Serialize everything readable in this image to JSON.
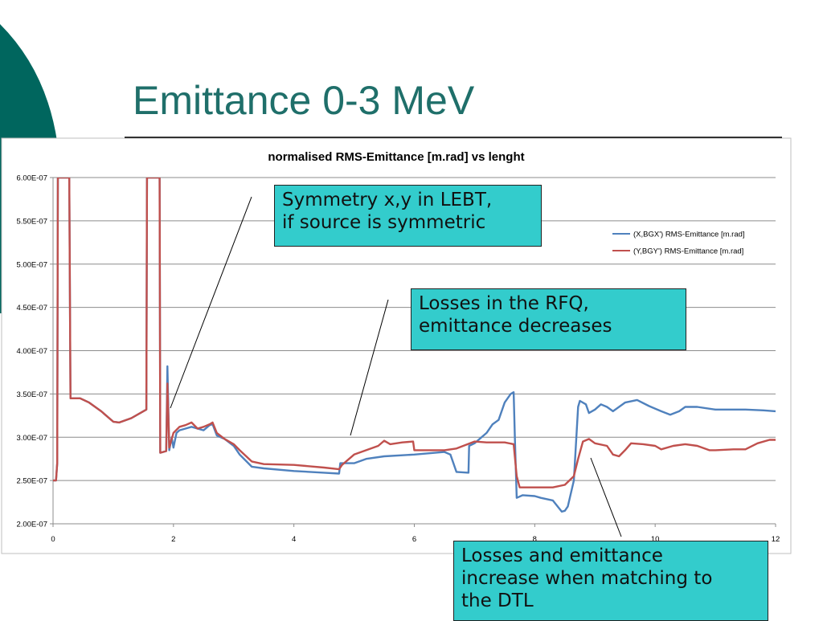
{
  "slide": {
    "title": "Emittance 0-3 MeV",
    "accent_color": "#00665e"
  },
  "callouts": [
    {
      "lines": [
        "Symmetry x,y in LEBT,",
        "if source is symmetric"
      ]
    },
    {
      "lines": [
        "Losses in the RFQ,",
        "emittance decreases"
      ]
    },
    {
      "lines": [
        "Losses and emittance",
        "increase when matching to",
        "the DTL"
      ]
    }
  ],
  "chart_data": {
    "type": "line",
    "title": "normalised  RMS-Emittance [m.rad] vs lenght",
    "xlabel": "",
    "ylabel": "",
    "xlim": [
      0,
      12
    ],
    "ylim": [
      2e-07,
      6e-07
    ],
    "x_ticks": [
      "0",
      "2",
      "4",
      "6",
      "8",
      "10",
      "12"
    ],
    "y_ticks": [
      "2.00E-07",
      "2.50E-07",
      "3.00E-07",
      "3.50E-07",
      "4.00E-07",
      "4.50E-07",
      "5.00E-07",
      "5.50E-07",
      "6.00E-07"
    ],
    "grid": "horizontal",
    "legend_position": "top-right",
    "series": [
      {
        "name": "(X,BGX') RMS-Emittance  [m.rad]",
        "color": "#4f81bd",
        "points": [
          [
            0,
            2.5e-07
          ],
          [
            0.05,
            2.5e-07
          ],
          [
            0.07,
            2.7e-07
          ],
          [
            0.08,
            6e-07
          ],
          [
            0.27,
            6e-07
          ],
          [
            0.29,
            3.45e-07
          ],
          [
            0.45,
            3.45e-07
          ],
          [
            0.6,
            3.4e-07
          ],
          [
            0.8,
            3.3e-07
          ],
          [
            1.0,
            3.18e-07
          ],
          [
            1.1,
            3.17e-07
          ],
          [
            1.3,
            3.22e-07
          ],
          [
            1.55,
            3.32e-07
          ],
          [
            1.56,
            6e-07
          ],
          [
            1.77,
            6e-07
          ],
          [
            1.78,
            2.82e-07
          ],
          [
            1.88,
            2.84e-07
          ],
          [
            1.9,
            3.82e-07
          ],
          [
            1.93,
            2.85e-07
          ],
          [
            1.97,
            3e-07
          ],
          [
            2.0,
            2.88e-07
          ],
          [
            2.05,
            3.05e-07
          ],
          [
            2.1,
            3.08e-07
          ],
          [
            2.2,
            3.1e-07
          ],
          [
            2.3,
            3.12e-07
          ],
          [
            2.4,
            3.1e-07
          ],
          [
            2.5,
            3.08e-07
          ],
          [
            2.6,
            3.14e-07
          ],
          [
            2.65,
            3.15e-07
          ],
          [
            2.72,
            3.02e-07
          ],
          [
            2.85,
            2.98e-07
          ],
          [
            3.0,
            2.9e-07
          ],
          [
            3.1,
            2.8e-07
          ],
          [
            3.3,
            2.66e-07
          ],
          [
            3.5,
            2.64e-07
          ],
          [
            4.0,
            2.61e-07
          ],
          [
            4.5,
            2.59e-07
          ],
          [
            4.75,
            2.58e-07
          ],
          [
            4.77,
            2.7e-07
          ],
          [
            5.0,
            2.7e-07
          ],
          [
            5.2,
            2.75e-07
          ],
          [
            5.5,
            2.78e-07
          ],
          [
            6.0,
            2.8e-07
          ],
          [
            6.5,
            2.83e-07
          ],
          [
            6.6,
            2.8e-07
          ],
          [
            6.7,
            2.6e-07
          ],
          [
            6.9,
            2.59e-07
          ],
          [
            6.91,
            2.9e-07
          ],
          [
            7.0,
            2.93e-07
          ],
          [
            7.2,
            3.05e-07
          ],
          [
            7.3,
            3.15e-07
          ],
          [
            7.4,
            3.2e-07
          ],
          [
            7.5,
            3.4e-07
          ],
          [
            7.6,
            3.5e-07
          ],
          [
            7.65,
            3.52e-07
          ],
          [
            7.67,
            3e-07
          ],
          [
            7.7,
            2.3e-07
          ],
          [
            7.8,
            2.33e-07
          ],
          [
            8.0,
            2.32e-07
          ],
          [
            8.1,
            2.3e-07
          ],
          [
            8.3,
            2.27e-07
          ],
          [
            8.45,
            2.14e-07
          ],
          [
            8.5,
            2.15e-07
          ],
          [
            8.55,
            2.2e-07
          ],
          [
            8.65,
            2.5e-07
          ],
          [
            8.72,
            3.35e-07
          ],
          [
            8.75,
            3.42e-07
          ],
          [
            8.85,
            3.38e-07
          ],
          [
            8.9,
            3.28e-07
          ],
          [
            9.0,
            3.32e-07
          ],
          [
            9.1,
            3.38e-07
          ],
          [
            9.2,
            3.35e-07
          ],
          [
            9.3,
            3.3e-07
          ],
          [
            9.5,
            3.4e-07
          ],
          [
            9.7,
            3.43e-07
          ],
          [
            9.9,
            3.36e-07
          ],
          [
            10.1,
            3.3e-07
          ],
          [
            10.25,
            3.26e-07
          ],
          [
            10.4,
            3.3e-07
          ],
          [
            10.5,
            3.35e-07
          ],
          [
            10.7,
            3.35e-07
          ],
          [
            11.0,
            3.32e-07
          ],
          [
            11.5,
            3.32e-07
          ],
          [
            11.8,
            3.31e-07
          ],
          [
            12.0,
            3.3e-07
          ]
        ]
      },
      {
        "name": "(Y,BGY') RMS-Emittance  [m.rad]",
        "color": "#c0504d",
        "points": [
          [
            0,
            2.5e-07
          ],
          [
            0.05,
            2.5e-07
          ],
          [
            0.07,
            2.7e-07
          ],
          [
            0.08,
            6e-07
          ],
          [
            0.27,
            6e-07
          ],
          [
            0.29,
            3.45e-07
          ],
          [
            0.45,
            3.45e-07
          ],
          [
            0.6,
            3.4e-07
          ],
          [
            0.8,
            3.3e-07
          ],
          [
            1.0,
            3.18e-07
          ],
          [
            1.1,
            3.17e-07
          ],
          [
            1.3,
            3.22e-07
          ],
          [
            1.55,
            3.32e-07
          ],
          [
            1.56,
            6e-07
          ],
          [
            1.77,
            6e-07
          ],
          [
            1.78,
            2.82e-07
          ],
          [
            1.88,
            2.84e-07
          ],
          [
            1.9,
            3.62e-07
          ],
          [
            1.93,
            2.88e-07
          ],
          [
            2.0,
            3.05e-07
          ],
          [
            2.1,
            3.12e-07
          ],
          [
            2.2,
            3.14e-07
          ],
          [
            2.3,
            3.17e-07
          ],
          [
            2.4,
            3.1e-07
          ],
          [
            2.5,
            3.12e-07
          ],
          [
            2.6,
            3.15e-07
          ],
          [
            2.65,
            3.17e-07
          ],
          [
            2.72,
            3.05e-07
          ],
          [
            2.85,
            2.98e-07
          ],
          [
            3.0,
            2.92e-07
          ],
          [
            3.1,
            2.85e-07
          ],
          [
            3.3,
            2.72e-07
          ],
          [
            3.5,
            2.69e-07
          ],
          [
            4.0,
            2.68e-07
          ],
          [
            4.5,
            2.65e-07
          ],
          [
            4.75,
            2.63e-07
          ],
          [
            4.8,
            2.68e-07
          ],
          [
            5.0,
            2.8e-07
          ],
          [
            5.2,
            2.85e-07
          ],
          [
            5.4,
            2.9e-07
          ],
          [
            5.5,
            2.96e-07
          ],
          [
            5.6,
            2.92e-07
          ],
          [
            5.8,
            2.94e-07
          ],
          [
            5.98,
            2.95e-07
          ],
          [
            6.0,
            2.85e-07
          ],
          [
            6.2,
            2.85e-07
          ],
          [
            6.5,
            2.85e-07
          ],
          [
            6.7,
            2.87e-07
          ],
          [
            7.0,
            2.95e-07
          ],
          [
            7.2,
            2.94e-07
          ],
          [
            7.5,
            2.94e-07
          ],
          [
            7.65,
            2.92e-07
          ],
          [
            7.7,
            2.55e-07
          ],
          [
            7.75,
            2.42e-07
          ],
          [
            8.0,
            2.42e-07
          ],
          [
            8.3,
            2.42e-07
          ],
          [
            8.5,
            2.45e-07
          ],
          [
            8.65,
            2.55e-07
          ],
          [
            8.72,
            2.75e-07
          ],
          [
            8.8,
            2.95e-07
          ],
          [
            8.9,
            2.98e-07
          ],
          [
            9.0,
            2.93e-07
          ],
          [
            9.2,
            2.9e-07
          ],
          [
            9.3,
            2.8e-07
          ],
          [
            9.4,
            2.78e-07
          ],
          [
            9.5,
            2.85e-07
          ],
          [
            9.6,
            2.93e-07
          ],
          [
            9.8,
            2.92e-07
          ],
          [
            10.0,
            2.9e-07
          ],
          [
            10.1,
            2.86e-07
          ],
          [
            10.3,
            2.9e-07
          ],
          [
            10.5,
            2.92e-07
          ],
          [
            10.7,
            2.9e-07
          ],
          [
            10.9,
            2.85e-07
          ],
          [
            11.0,
            2.85e-07
          ],
          [
            11.3,
            2.86e-07
          ],
          [
            11.5,
            2.86e-07
          ],
          [
            11.7,
            2.93e-07
          ],
          [
            11.9,
            2.97e-07
          ],
          [
            12.0,
            2.97e-07
          ]
        ]
      }
    ]
  }
}
